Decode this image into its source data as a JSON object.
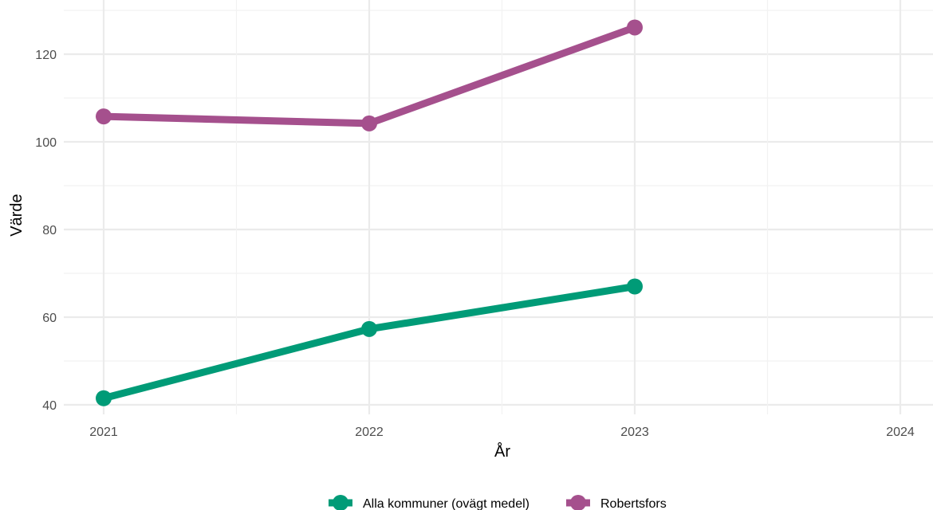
{
  "chart_data": {
    "type": "line",
    "title": "",
    "xlabel": "År",
    "ylabel": "Värde",
    "x": [
      2021,
      2022,
      2023
    ],
    "xticks": [
      2021,
      2022,
      2023,
      2024
    ],
    "yticks": [
      40,
      60,
      80,
      100,
      120
    ],
    "xlim": [
      2021,
      2024
    ],
    "ylim": [
      38,
      128
    ],
    "grid": true,
    "legend_position": "bottom",
    "series": [
      {
        "name": "Alla kommuner (ovägt medel)",
        "color": "#009B77",
        "values": [
          41.5,
          57.3,
          67.0
        ]
      },
      {
        "name": "Robertsfors",
        "color": "#A5508D",
        "values": [
          105.8,
          104.2,
          126.1
        ]
      }
    ]
  }
}
